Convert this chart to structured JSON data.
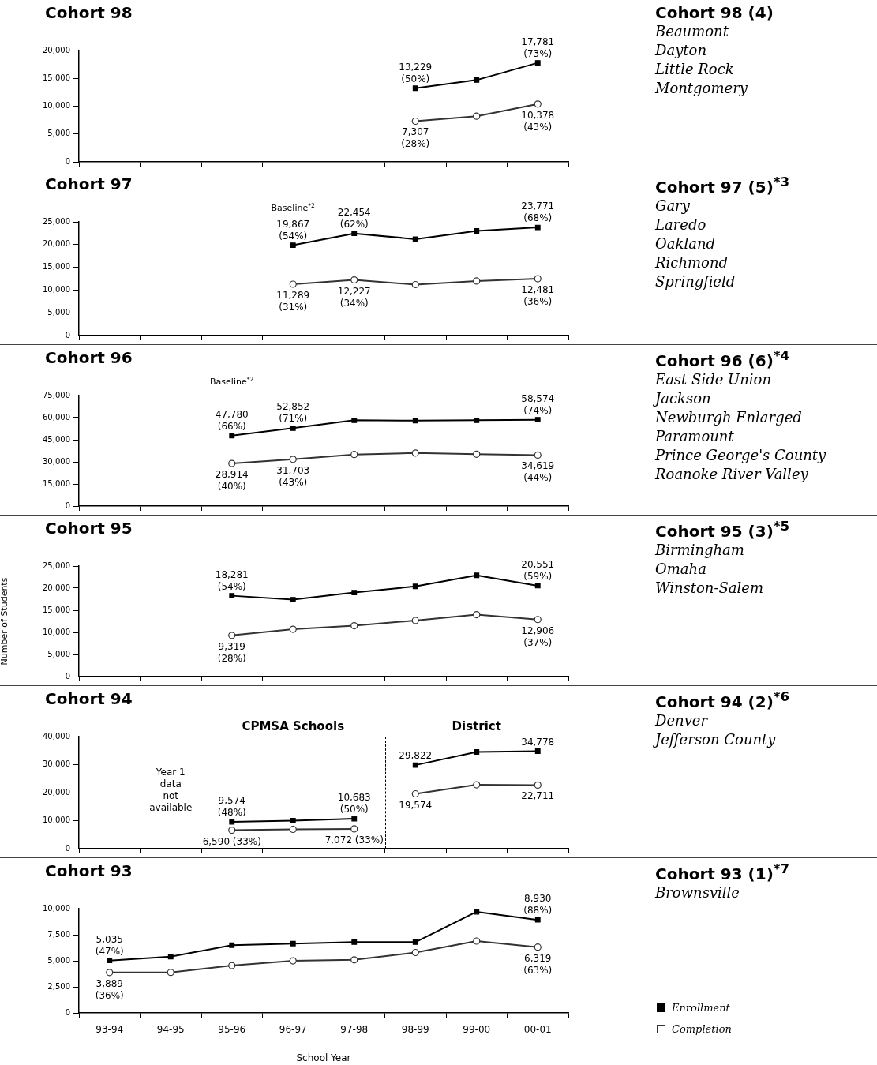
{
  "chart_data": [
    {
      "type": "line",
      "title": "Cohort 98",
      "categories": [
        null,
        null,
        null,
        null,
        null,
        null,
        null,
        null
      ],
      "marker": "square",
      "tick_labels": "y",
      "ylim": [
        0,
        20000
      ],
      "yticks": [
        {
          "value": 0,
          "label": "0"
        },
        {
          "value": 5000,
          "label": "5,000"
        },
        {
          "value": 10000,
          "label": "10,000"
        },
        {
          "value": 15000,
          "label": "15,000"
        },
        {
          "value": 20000,
          "label": "20,000"
        }
      ],
      "series": [
        {
          "color": "#000000",
          "values": [
            null,
            null,
            null,
            null,
            null,
            13229,
            14700,
            17781
          ],
          "value_labels": [
            null,
            null,
            null,
            null,
            null,
            "13,229\n(50%)",
            null,
            "17,781\n(73%)"
          ]
        },
        {
          "color": "#333333",
          "marker": "circle",
          "values": [
            null,
            null,
            null,
            null,
            null,
            7307,
            8200,
            10378
          ],
          "value_labels": [
            null,
            null,
            null,
            null,
            null,
            "7,307\n(28%)",
            null,
            "10,378\n(43%)"
          ]
        }
      ]
    },
    {
      "type": "other",
      "title": "Cohort 98 (4)",
      "annotations": [
        "Beaumont",
        "Dayton",
        "Little Rock",
        "Montgomery"
      ]
    },
    {
      "type": "line",
      "title": "Cohort 97",
      "categories": [
        null,
        null,
        null,
        null,
        null,
        null,
        null,
        null
      ],
      "marker": "square",
      "tick_labels": "y",
      "ylim": [
        0,
        25000
      ],
      "yticks": [
        {
          "value": 0,
          "label": "0"
        },
        {
          "value": 5000,
          "label": "5,000"
        },
        {
          "value": 10000,
          "label": "10,000"
        },
        {
          "value": 15000,
          "label": "15,000"
        },
        {
          "value": 20000,
          "label": "20,000"
        },
        {
          "value": 25000,
          "label": "25,000"
        }
      ],
      "series": [
        {
          "color": "#000000",
          "values": [
            null,
            null,
            null,
            19867,
            22454,
            21200,
            23000,
            23771
          ],
          "value_labels": [
            null,
            null,
            null,
            "19,867\n(54%)",
            "22,454\n(62%)",
            null,
            null,
            "23,771\n(68%)"
          ]
        },
        {
          "color": "#333333",
          "marker": "circle",
          "values": [
            null,
            null,
            null,
            11289,
            12227,
            11200,
            12000,
            12481
          ],
          "value_labels": [
            null,
            null,
            null,
            "11,289\n(31%)",
            "12,227\n(34%)",
            null,
            null,
            "12,481\n(36%)"
          ]
        }
      ],
      "annotations": [
        "Baseline$^{*2}$"
      ]
    },
    {
      "type": "other",
      "title": "Cohort 97 (5)$^{*3}$",
      "annotations": [
        "Gary",
        "Laredo",
        "Oakland",
        "Richmond",
        "Springfield"
      ]
    },
    {
      "type": "line",
      "title": "Cohort 96",
      "categories": [
        null,
        null,
        null,
        null,
        null,
        null,
        null,
        null
      ],
      "marker": "square",
      "tick_labels": "y",
      "ylim": [
        0,
        75000
      ],
      "yticks": [
        {
          "value": 0,
          "label": "0"
        },
        {
          "value": 15000,
          "label": "15,000"
        },
        {
          "value": 30000,
          "label": "30,000"
        },
        {
          "value": 45000,
          "label": "45,000"
        },
        {
          "value": 60000,
          "label": "60,000"
        },
        {
          "value": 75000,
          "label": "75,000"
        }
      ],
      "series": [
        {
          "color": "#000000",
          "values": [
            null,
            null,
            47780,
            52852,
            58200,
            58000,
            58200,
            58574
          ],
          "value_labels": [
            null,
            null,
            "47,780\n(66%)",
            "52,852\n(71%)",
            null,
            null,
            null,
            "58,574\n(74%)"
          ]
        },
        {
          "color": "#333333",
          "marker": "circle",
          "values": [
            null,
            null,
            28914,
            31703,
            35000,
            36000,
            35200,
            34619
          ],
          "value_labels": [
            null,
            null,
            "28,914\n(40%)",
            "31,703\n(43%)",
            null,
            null,
            null,
            "34,619\n(44%)"
          ]
        }
      ],
      "annotations": [
        "Baseline$^{*2}$"
      ]
    },
    {
      "type": "other",
      "title": "Cohort 96 (6)$^{*4}$",
      "annotations": [
        "East Side Union",
        "Jackson",
        "Newburgh Enlarged",
        "Paramount",
        "Prince George's County",
        "Roanoke River Valley"
      ]
    },
    {
      "type": "line",
      "title": "Cohort 95",
      "ylabel": "Number of Students",
      "categories": [
        null,
        null,
        null,
        null,
        null,
        null,
        null,
        null
      ],
      "marker": "square",
      "tick_labels": "y",
      "ylim": [
        0,
        25000
      ],
      "yticks": [
        {
          "value": 0,
          "label": "0"
        },
        {
          "value": 5000,
          "label": "5,000"
        },
        {
          "value": 10000,
          "label": "10,000"
        },
        {
          "value": 15000,
          "label": "15,000"
        },
        {
          "value": 20000,
          "label": "20,000"
        },
        {
          "value": 25000,
          "label": "25,000"
        }
      ],
      "series": [
        {
          "color": "#000000",
          "values": [
            null,
            null,
            18281,
            17400,
            19000,
            20400,
            22900,
            20551
          ],
          "value_labels": [
            null,
            null,
            "18,281\n(54%)",
            null,
            null,
            null,
            null,
            "20,551\n(59%)"
          ]
        },
        {
          "color": "#333333",
          "marker": "circle",
          "values": [
            null,
            null,
            9319,
            10700,
            11500,
            12700,
            14000,
            12906
          ],
          "value_labels": [
            null,
            null,
            "9,319\n(28%)",
            null,
            null,
            null,
            null,
            "12,906\n(37%)"
          ]
        }
      ]
    },
    {
      "type": "other",
      "title": "Cohort 95 (3)$^{*5}$",
      "annotations": [
        "Birmingham",
        "Omaha",
        "Winston-Salem"
      ]
    },
    {
      "type": "line",
      "title": "Cohort 94",
      "categories": [
        null,
        null,
        null,
        null,
        null,
        null,
        null,
        null
      ],
      "marker": "square",
      "tick_labels": "y",
      "ylim": [
        0,
        40000
      ],
      "yticks": [
        {
          "value": 0,
          "label": "0"
        },
        {
          "value": 10000,
          "label": "10,000"
        },
        {
          "value": 20000,
          "label": "20,000"
        },
        {
          "value": 30000,
          "label": "30,000"
        },
        {
          "value": 40000,
          "label": "40,000"
        }
      ],
      "series": [
        {
          "color": "#000000",
          "values": [
            null,
            null,
            9574,
            10000,
            10683,
            null,
            null,
            null
          ],
          "value_labels": [
            null,
            null,
            "9,574\n(48%)",
            null,
            "10,683\n(50%)",
            null,
            null,
            null
          ]
        },
        {
          "color": "#333333",
          "marker": "circle",
          "values": [
            null,
            null,
            6590,
            6900,
            7072,
            null,
            null,
            null
          ],
          "value_labels": [
            null,
            null,
            "6,590 (33%)",
            null,
            "7,072 (33%)",
            null,
            null,
            null
          ]
        },
        {
          "color": "#000000",
          "values": [
            null,
            null,
            null,
            null,
            null,
            29822,
            34500,
            34778
          ],
          "value_labels": [
            null,
            null,
            null,
            null,
            null,
            "29,822",
            null,
            "34,778"
          ]
        },
        {
          "color": "#333333",
          "marker": "circle",
          "values": [
            null,
            null,
            null,
            null,
            null,
            19574,
            22800,
            22711
          ],
          "value_labels": [
            null,
            null,
            null,
            null,
            null,
            "19,574",
            null,
            "22,711"
          ]
        }
      ],
      "annotations": [
        "CPMSA Schools",
        "District",
        "Year 1 data not available"
      ]
    },
    {
      "type": "other",
      "title": "Cohort 94 (2)$^{*6}$",
      "annotations": [
        "Denver",
        "Jefferson County"
      ]
    },
    {
      "type": "line",
      "title": "Cohort 93",
      "xlabel": "School Year",
      "categories": [
        "93-94",
        "94-95",
        "95-96",
        "96-97",
        "97-98",
        "98-99",
        "99-00",
        "00-01"
      ],
      "marker": "square",
      "legend": "bottom right",
      "ylim": [
        0,
        10000
      ],
      "yticks": [
        {
          "value": 0,
          "label": "0"
        },
        {
          "value": 2500,
          "label": "2,500"
        },
        {
          "value": 5000,
          "label": "5,000"
        },
        {
          "value": 7500,
          "label": "7,500"
        },
        {
          "value": 10000,
          "label": "10,000"
        }
      ],
      "series": [
        {
          "name": "Enrollment",
          "color": "#000000",
          "values": [
            5035,
            5400,
            6500,
            6650,
            6800,
            6800,
            9700,
            8930
          ],
          "value_labels": [
            "5,035\n(47%)",
            null,
            null,
            null,
            null,
            null,
            null,
            "8,930\n(88%)"
          ]
        },
        {
          "name": "Completion",
          "color": "#333333",
          "marker": "circle",
          "values": [
            3889,
            3900,
            4550,
            5000,
            5100,
            5800,
            6900,
            6319
          ],
          "value_labels": [
            "3,889\n(36%)",
            null,
            null,
            null,
            null,
            null,
            null,
            "6,319\n(63%)"
          ]
        }
      ]
    },
    {
      "type": "other",
      "title": "Cohort 93 (1)$^{*7}$",
      "annotations": [
        "Brownsville"
      ]
    }
  ]
}
